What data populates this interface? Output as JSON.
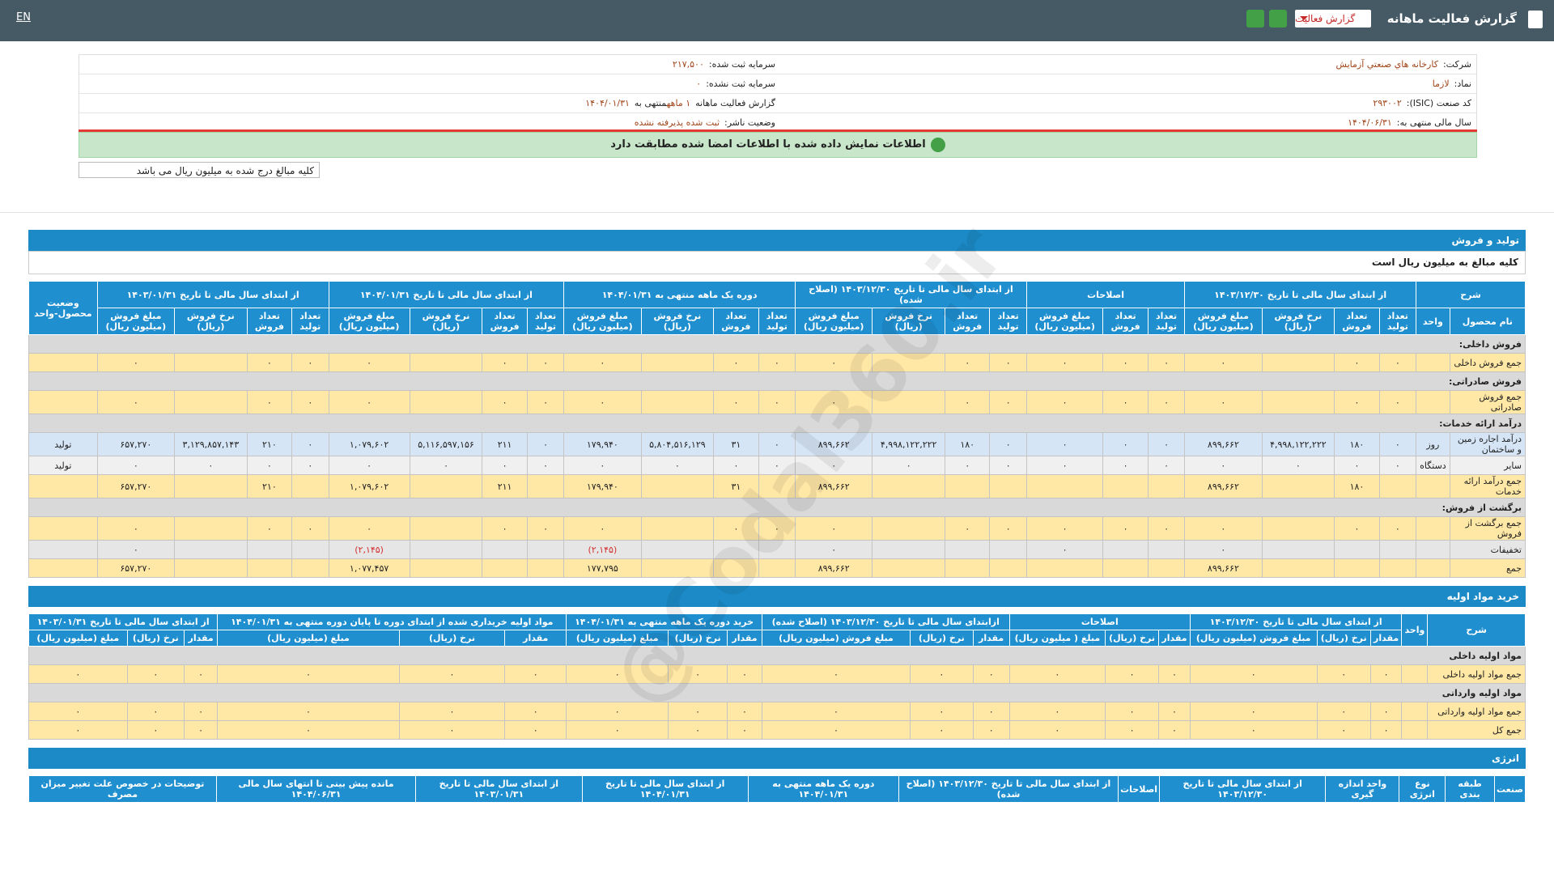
{
  "header": {
    "title": "گزارش فعالیت ماهانه",
    "report_select": "گزارش فعالیت",
    "lang": "EN"
  },
  "info": {
    "company_label": "شرکت:",
    "company": "کارخانه هاي صنعتي آزمايش",
    "capital_label": "سرمایه ثبت شده:",
    "capital": "۲۱۷,۵۰۰",
    "symbol_label": "نماد:",
    "symbol": "لازما",
    "unreg_capital_label": "سرمایه ثبت نشده:",
    "unreg_capital": "۰",
    "isic_label": "کد صنعت (ISIC):",
    "isic": "۲۹۳۰۰۲",
    "report_label": "گزارش فعالیت ماهانه",
    "report_period": "۱ ماهه",
    "report_end_label": "منتهی به",
    "report_end": "۱۴۰۴/۰۱/۳۱",
    "fiscal_label": "سال مالی منتهی به:",
    "fiscal": "۱۴۰۴/۰۶/۳۱",
    "status_label": "وضعیت ناشر:",
    "status": "ثبت شده پذیرفته نشده"
  },
  "notice": "اطلاعات نمایش داده شده با اطلاعات امضا شده مطابقت دارد",
  "unit_note": "کلیه مبالغ درج شده به میلیون ریال می باشد",
  "watermark": "@Codal360.ir",
  "sections": [
    {
      "title": "تولید و فروش",
      "note": "کلیه مبالغ به میلیون ریال است",
      "section_color": "#d9d9d9",
      "columns": [
        {
          "title": "شرح",
          "columns": [
            "نام محصول",
            "واحد"
          ]
        },
        {
          "title": "از ابتدای سال مالی تا تاریخ ۱۴۰۳/۱۲/۳۰",
          "columns": [
            "تعداد تولید",
            "تعداد فروش",
            "نرخ فروش (ریال)",
            "مبلغ فروش (میلیون ریال)"
          ]
        },
        {
          "title": "اصلاحات",
          "columns": [
            "تعداد تولید",
            "تعداد فروش",
            "مبلغ فروش (میلیون ریال)"
          ]
        },
        {
          "title": "از ابتدای سال مالی تا تاریخ ۱۴۰۳/۱۲/۳۰ (اصلاح شده)",
          "columns": [
            "تعداد تولید",
            "تعداد فروش",
            "نرخ فروش (ریال)",
            "مبلغ فروش (میلیون ریال)"
          ]
        },
        {
          "title": "دوره یک ماهه منتهی به ۱۴۰۴/۰۱/۳۱",
          "columns": [
            "تعداد تولید",
            "تعداد فروش",
            "نرخ فروش (ریال)",
            "مبلغ فروش (میلیون ریال)"
          ]
        },
        {
          "title": "از ابتدای سال مالی تا تاریخ ۱۴۰۴/۰۱/۳۱",
          "columns": [
            "تعداد تولید",
            "تعداد فروش",
            "نرخ فروش (ریال)",
            "مبلغ فروش (میلیون ریال)"
          ]
        },
        {
          "title": "از ابتدای سال مالی تا تاریخ ۱۴۰۳/۰۱/۳۱",
          "columns": [
            "تعداد تولید",
            "تعداد فروش",
            "نرخ فروش (ریال)",
            "مبلغ فروش (میلیون ریال)"
          ]
        },
        {
          "title": "وضعیت محصول-واحد"
        }
      ],
      "rows": [
        {
          "label": "فروش داخلی:"
        },
        {
          "color": "#ffe7a6",
          "cells": [
            "جمع فروش داخلی",
            null,
            "۰",
            "۰",
            null,
            "۰",
            "۰",
            "۰",
            "۰",
            "۰",
            "۰",
            null,
            "۰",
            "۰",
            "۰",
            null,
            "۰",
            "۰",
            "۰",
            null,
            "۰",
            "۰",
            "۰",
            null,
            "۰",
            null
          ]
        },
        {
          "label": "فروش صادراتی:"
        },
        {
          "color": "#ffe7a6",
          "cells": [
            "جمع فروش صادراتی",
            null,
            "۰",
            "۰",
            null,
            "۰",
            "۰",
            "۰",
            "۰",
            "۰",
            "۰",
            null,
            "۰",
            "۰",
            "۰",
            null,
            "۰",
            "۰",
            "۰",
            null,
            "۰",
            "۰",
            "۰",
            null,
            "۰",
            null
          ]
        },
        {
          "label": "درآمد ارائه خدمات:"
        },
        {
          "color": "#d6e5f6",
          "cells": [
            "درآمد اجاره زمین و ساختمان",
            "روز",
            "۰",
            "۱۸۰",
            "۴,۹۹۸,۱۲۲,۲۲۲",
            "۸۹۹,۶۶۲",
            "۰",
            "۰",
            "۰",
            "۰",
            "۱۸۰",
            "۴,۹۹۸,۱۲۲,۲۲۲",
            "۸۹۹,۶۶۲",
            "۰",
            "۳۱",
            "۵,۸۰۴,۵۱۶,۱۲۹",
            "۱۷۹,۹۴۰",
            "۰",
            "۲۱۱",
            "۵,۱۱۶,۵۹۷,۱۵۶",
            "۱,۰۷۹,۶۰۲",
            "۰",
            "۲۱۰",
            "۳,۱۲۹,۸۵۷,۱۴۳",
            "۶۵۷,۲۷۰",
            "تولید"
          ]
        },
        {
          "color": "#f0f0f0",
          "cells": [
            "سایر",
            "دستگاه",
            "۰",
            "۰",
            "۰",
            "۰",
            "۰",
            "۰",
            "۰",
            "۰",
            "۰",
            "۰",
            "۰",
            "۰",
            "۰",
            "۰",
            "۰",
            "۰",
            "۰",
            "۰",
            "۰",
            "۰",
            "۰",
            "۰",
            "۰",
            "تولید"
          ]
        },
        {
          "color": "#ffe7a6",
          "cells": [
            "جمع درآمد ارائه خدمات",
            null,
            null,
            "۱۸۰",
            null,
            "۸۹۹,۶۶۲",
            null,
            null,
            null,
            null,
            null,
            null,
            "۸۹۹,۶۶۲",
            null,
            "۳۱",
            null,
            "۱۷۹,۹۴۰",
            null,
            "۲۱۱",
            null,
            "۱,۰۷۹,۶۰۲",
            null,
            "۲۱۰",
            null,
            "۶۵۷,۲۷۰",
            null
          ]
        },
        {
          "label": "برگشت از فروش:"
        },
        {
          "color": "#ffe7a6",
          "cells": [
            "جمع برگشت از فروش",
            null,
            "۰",
            "۰",
            null,
            "۰",
            "۰",
            "۰",
            "۰",
            "۰",
            "۰",
            null,
            "۰",
            "۰",
            "۰",
            null,
            "۰",
            "۰",
            "۰",
            null,
            "۰",
            "۰",
            "۰",
            null,
            "۰",
            null
          ]
        },
        {
          "color": "#e6e6e6",
          "cells": [
            "تخفیفات",
            null,
            null,
            null,
            null,
            "۰",
            null,
            null,
            "۰",
            null,
            null,
            null,
            "۰",
            null,
            null,
            null,
            "(۲,۱۴۵)",
            null,
            null,
            null,
            "(۲,۱۴۵)",
            null,
            null,
            null,
            "۰",
            null
          ]
        },
        {
          "color": "#ffe7a6",
          "cells": [
            "جمع",
            null,
            null,
            null,
            null,
            "۸۹۹,۶۶۲",
            null,
            null,
            null,
            null,
            null,
            null,
            "۸۹۹,۶۶۲",
            null,
            null,
            null,
            "۱۷۷,۷۹۵",
            null,
            null,
            null,
            "۱,۰۷۷,۴۵۷",
            null,
            null,
            null,
            "۶۵۷,۲۷۰",
            null
          ]
        }
      ]
    },
    {
      "title": "خرید مواد اولیه",
      "section_color": "#d9d9d9",
      "columns": [
        {
          "title": "شرح"
        },
        {
          "title": "واحد"
        },
        {
          "title": "از ابتدای سال مالی تا تاریخ ۱۴۰۳/۱۲/۳۰",
          "columns": [
            "مقدار",
            "نرخ (ریال)",
            "مبلغ فروش (میلیون ریال)"
          ]
        },
        {
          "title": "اصلاحات",
          "columns": [
            "مقدار",
            "نرخ (ریال)",
            "مبلغ ( میلیون ریال)"
          ]
        },
        {
          "title": "ازابتدای سال مالی تا تاریخ ۱۴۰۳/۱۲/۳۰ (اصلاح شده)",
          "columns": [
            "مقدار",
            "نرخ (ریال)",
            "مبلغ فروش (میلیون ریال)"
          ]
        },
        {
          "title": "خرید دوره یک ماهه منتهی به ۱۴۰۴/۰۱/۳۱",
          "columns": [
            "مقدار",
            "نرخ (ریال)",
            "مبلغ (میلیون ریال)"
          ]
        },
        {
          "title": "مواد اولیه خریداری شده از ابتدای دوره تا پایان دوره منتهی به ۱۴۰۴/۰۱/۳۱",
          "columns": [
            "مقدار",
            "نرخ (ریال)",
            "مبلغ (میلیون ریال)"
          ]
        },
        {
          "title": "از ابتدای سال مالی تا تاریخ ۱۴۰۳/۰۱/۳۱",
          "columns": [
            "مقدار",
            "نرخ (ریال)",
            "مبلغ (میلیون ریال)"
          ]
        }
      ],
      "rows": [
        {
          "label": "مواد اولیه داخلی"
        },
        {
          "color": "#ffe7a6",
          "cells": [
            "جمع مواد اولیه داخلی",
            null,
            "۰",
            "۰",
            "۰",
            "۰",
            "۰",
            "۰",
            "۰",
            "۰",
            "۰",
            "۰",
            "۰",
            "۰",
            "۰",
            "۰",
            "۰",
            "۰",
            "۰",
            "۰"
          ]
        },
        {
          "label": "مواد اولیه وارداتی"
        },
        {
          "color": "#ffe7a6",
          "cells": [
            "جمع مواد اولیه وارداتی",
            null,
            "۰",
            "۰",
            "۰",
            "۰",
            "۰",
            "۰",
            "۰",
            "۰",
            "۰",
            "۰",
            "۰",
            "۰",
            "۰",
            "۰",
            "۰",
            "۰",
            "۰",
            "۰"
          ]
        },
        {
          "color": "#ffe7a6",
          "cells": [
            "جمع کل",
            null,
            "۰",
            "۰",
            "۰",
            "۰",
            "۰",
            "۰",
            "۰",
            "۰",
            "۰",
            "۰",
            "۰",
            "۰",
            "۰",
            "۰",
            "۰",
            "۰",
            "۰",
            "۰"
          ]
        }
      ]
    },
    {
      "title": "انرژی",
      "section_color": "#d9d9d9",
      "columns": [
        {
          "title": "صنعت"
        },
        {
          "title": "طبقه بندی"
        },
        {
          "title": "نوع انرژی"
        },
        {
          "title": "واحد اندازه گیری"
        },
        {
          "title": "از ابتدای سال مالی تا تاریخ ۱۴۰۳/۱۲/۳۰"
        },
        {
          "title": "اصلاحات"
        },
        {
          "title": "از ابتدای سال مالی تا تاریخ ۱۴۰۳/۱۲/۳۰ (اصلاح شده)"
        },
        {
          "title": "دوره یک ماهه منتهی به ۱۴۰۴/۰۱/۳۱"
        },
        {
          "title": "از ابتدای سال مالی تا تاریخ ۱۴۰۴/۰۱/۳۱"
        },
        {
          "title": "از ابتدای سال مالی تا تاریخ ۱۴۰۳/۰۱/۳۱"
        },
        {
          "title": "مانده پیش بینی تا انتهای سال مالی ۱۴۰۴/۰۶/۳۱"
        },
        {
          "title": "توضیحات در خصوص علت تغییر میزان مصرف"
        }
      ],
      "rows": []
    }
  ]
}
